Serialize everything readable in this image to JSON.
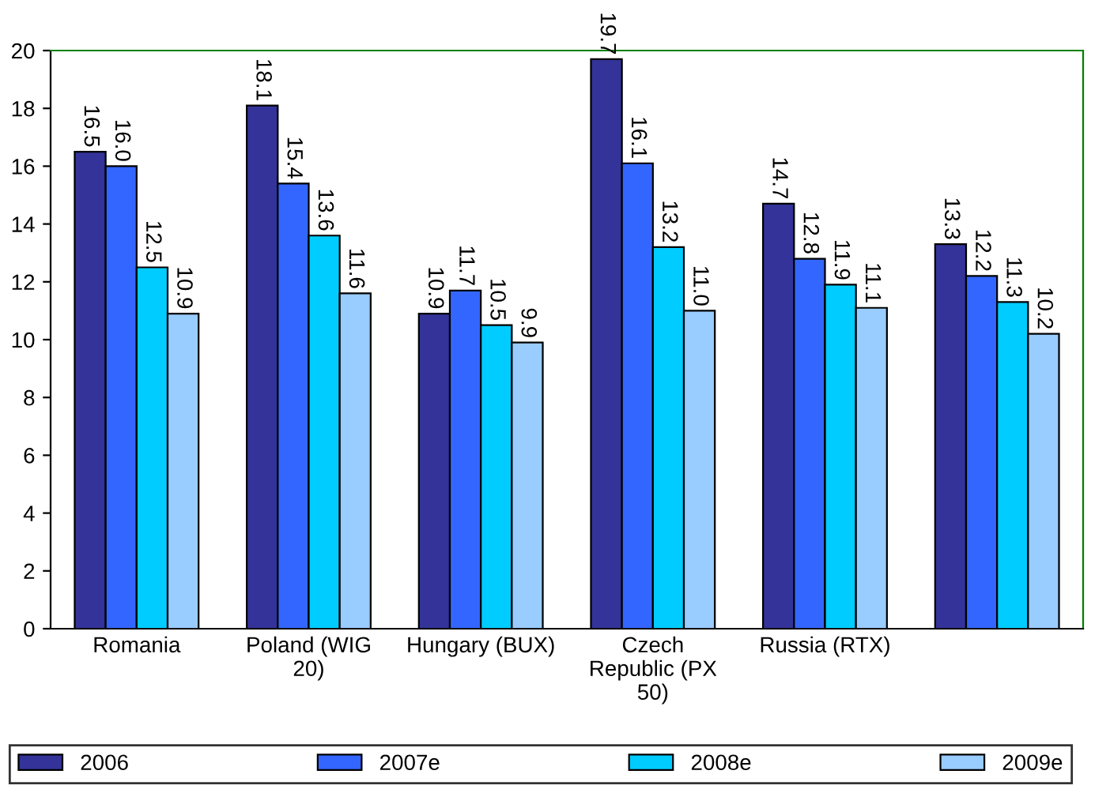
{
  "chart_data": {
    "type": "bar",
    "categories": [
      "Romania",
      "Poland (WIG 20)",
      "Hungary (BUX)",
      "Czech Republic (PX 50)",
      "Russia (RTX)",
      null
    ],
    "series": [
      {
        "name": "2006",
        "color": "#333399",
        "values": [
          16.5,
          18.1,
          10.9,
          19.7,
          14.7,
          13.3
        ]
      },
      {
        "name": "2007e",
        "color": "#3366ff",
        "values": [
          16.0,
          15.4,
          11.7,
          16.1,
          12.8,
          12.2
        ]
      },
      {
        "name": "2008e",
        "color": "#00ccff",
        "values": [
          12.5,
          13.6,
          10.5,
          13.2,
          11.9,
          11.3
        ]
      },
      {
        "name": "2009e",
        "color": "#99ccff",
        "values": [
          10.9,
          11.6,
          9.9,
          11.0,
          11.1,
          10.2
        ]
      }
    ],
    "value_labels": [
      [
        "16.5",
        "18.1",
        "10.9",
        "19.7",
        "14.7",
        "13.3"
      ],
      [
        "16.0",
        "15.4",
        "11.7",
        "16.1",
        "12.8",
        "12.2"
      ],
      [
        "12.5",
        "13.6",
        "10.5",
        "13.2",
        "11.9",
        "11.3"
      ],
      [
        "10.9",
        "11.6",
        "9.9",
        "11.0",
        "11.1",
        "10.2"
      ]
    ],
    "ylim": [
      0,
      20
    ],
    "yticks": [
      0,
      2,
      4,
      6,
      8,
      10,
      12,
      14,
      16,
      18,
      20
    ],
    "grid": false,
    "legend": "bottom"
  }
}
